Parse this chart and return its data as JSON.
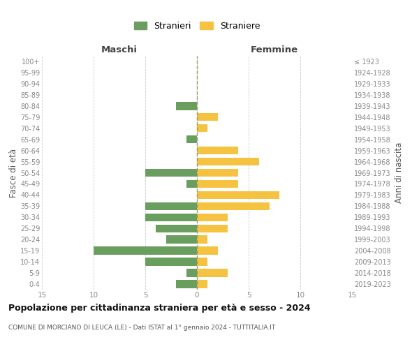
{
  "age_groups": [
    "100+",
    "95-99",
    "90-94",
    "85-89",
    "80-84",
    "75-79",
    "70-74",
    "65-69",
    "60-64",
    "55-59",
    "50-54",
    "45-49",
    "40-44",
    "35-39",
    "30-34",
    "25-29",
    "20-24",
    "15-19",
    "10-14",
    "5-9",
    "0-4"
  ],
  "birth_years": [
    "≤ 1923",
    "1924-1928",
    "1929-1933",
    "1934-1938",
    "1939-1943",
    "1944-1948",
    "1949-1953",
    "1954-1958",
    "1959-1963",
    "1964-1968",
    "1969-1973",
    "1974-1978",
    "1979-1983",
    "1984-1988",
    "1989-1993",
    "1994-1998",
    "1999-2003",
    "2004-2008",
    "2009-2013",
    "2014-2018",
    "2019-2023"
  ],
  "males": [
    0,
    0,
    0,
    0,
    2,
    0,
    0,
    1,
    0,
    0,
    5,
    1,
    0,
    5,
    5,
    4,
    3,
    10,
    5,
    1,
    2
  ],
  "females": [
    0,
    0,
    0,
    0,
    0,
    2,
    1,
    0,
    4,
    6,
    4,
    4,
    8,
    7,
    3,
    3,
    1,
    2,
    1,
    3,
    1
  ],
  "male_color": "#6a9e5e",
  "female_color": "#f5c242",
  "background_color": "#ffffff",
  "grid_color": "#cccccc",
  "title": "Popolazione per cittadinanza straniera per età e sesso - 2024",
  "subtitle": "COMUNE DI MORCIANO DI LEUCA (LE) - Dati ISTAT al 1° gennaio 2024 - TUTTITALIA.IT",
  "xlabel_left": "Maschi",
  "xlabel_right": "Femmine",
  "ylabel_left": "Fasce di età",
  "ylabel_right": "Anni di nascita",
  "legend_male": "Stranieri",
  "legend_female": "Straniere",
  "xlim": 15,
  "tick_color": "#888888",
  "dashed_line_color": "#999966"
}
